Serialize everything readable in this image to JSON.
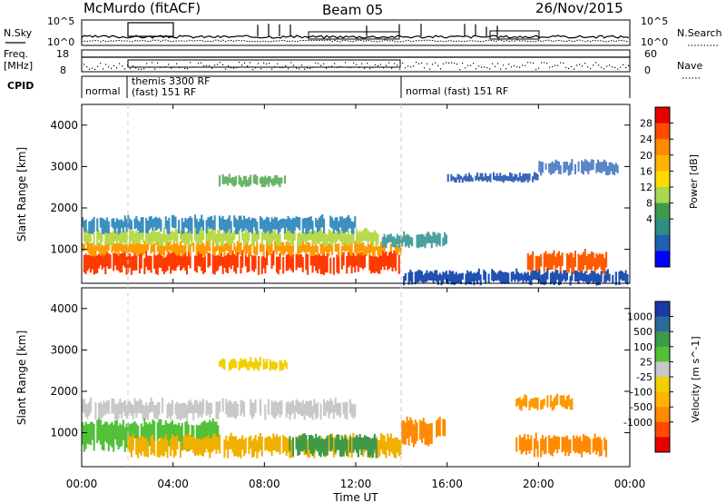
{
  "header": {
    "station": "McMurdo (fitACF)",
    "beam": "Beam 05",
    "date": "26/Nov/2015"
  },
  "top_panels": {
    "nsky_label": "N.Sky",
    "nsearch_label": "N.Search",
    "freq_label": "Freq.",
    "freq_unit": "[MHz]",
    "nave_label": "Nave",
    "cpid_label": "CPID",
    "nsky_ticks": [
      "10^5",
      "10^0"
    ],
    "nsearch_ticks": [
      "10^5",
      "10^0"
    ],
    "freq_ticks": [
      "18",
      "8"
    ],
    "nave_ticks": [
      "60",
      "0"
    ],
    "cpid_segments": [
      {
        "label": "normal",
        "start_hour": 0,
        "end_hour": 1.9
      },
      {
        "label": "themis 3300 RF",
        "start_hour": 1.9,
        "end_hour": 14
      },
      {
        "label": "(fast) 151 RF",
        "start_hour": 1.9,
        "end_hour": 14
      },
      {
        "label": "normal (fast) 151 RF",
        "start_hour": 14,
        "end_hour": 24
      }
    ]
  },
  "chart_data": [
    {
      "type": "heatmap",
      "name": "power",
      "ylabel": "Slant Range [km]",
      "xlabel": "Time UT",
      "xlim": [
        0,
        24
      ],
      "ylim": [
        180,
        4500
      ],
      "x_tick_labels": [
        "00:00",
        "04:00",
        "08:00",
        "12:00",
        "16:00",
        "20:00",
        "00:00"
      ],
      "y_tick_values": [
        1000,
        2000,
        3000,
        4000
      ],
      "y_tick_labels": [
        "1000",
        "2000",
        "3000",
        "4000"
      ],
      "colorbar": {
        "label": "Power [dB]",
        "tick_labels": [
          "28",
          "24",
          "20",
          "16",
          "12",
          "8",
          "4"
        ],
        "colors": [
          "#e80000",
          "#ff4a00",
          "#ff8a00",
          "#ffb400",
          "#ffdb00",
          "#a8d84e",
          "#3c9a4a",
          "#2c8e84",
          "#1e5fb0",
          "#0000ff"
        ]
      },
      "bands": [
        {
          "start": 0.0,
          "end": 14.0,
          "r_low": 500,
          "r_high": 900,
          "color": "#ff3a00"
        },
        {
          "start": 0.0,
          "end": 14.0,
          "r_low": 900,
          "r_high": 1150,
          "color": "#ff9a00"
        },
        {
          "start": 0.0,
          "end": 13.0,
          "r_low": 1150,
          "r_high": 1450,
          "color": "#b8d94c"
        },
        {
          "start": 0.0,
          "end": 12.0,
          "r_low": 1450,
          "r_high": 1750,
          "color": "#3c8fc0"
        },
        {
          "start": 6.0,
          "end": 9.0,
          "r_low": 2550,
          "r_high": 2750,
          "color": "#6ab46a"
        },
        {
          "start": 13.0,
          "end": 16.0,
          "r_low": 1100,
          "r_high": 1350,
          "color": "#4aa0a0"
        },
        {
          "start": 16.0,
          "end": 20.0,
          "r_low": 2650,
          "r_high": 2800,
          "color": "#3a66b8"
        },
        {
          "start": 19.5,
          "end": 23.0,
          "r_low": 500,
          "r_high": 900,
          "color": "#ff5a00"
        },
        {
          "start": 20.0,
          "end": 23.5,
          "r_low": 2850,
          "r_high": 3100,
          "color": "#5a86c8"
        },
        {
          "start": 14.0,
          "end": 24.0,
          "r_low": 200,
          "r_high": 450,
          "color": "#2050b0"
        }
      ]
    },
    {
      "type": "heatmap",
      "name": "velocity",
      "ylabel": "Slant Range [km]",
      "xlabel": "Time UT",
      "xlim": [
        0,
        24
      ],
      "ylim": [
        180,
        4500
      ],
      "x_tick_labels": [
        "00:00",
        "04:00",
        "08:00",
        "12:00",
        "16:00",
        "20:00",
        "00:00"
      ],
      "y_tick_values": [
        1000,
        2000,
        3000,
        4000
      ],
      "y_tick_labels": [
        "1000",
        "2000",
        "3000",
        "4000"
      ],
      "colorbar": {
        "label": "Velocity [m s^-1]",
        "tick_labels": [
          "1000",
          "500",
          "100",
          "25",
          "-25",
          "-100",
          "-500",
          "-1000"
        ],
        "colors": [
          "#1a3aa8",
          "#2a6a9a",
          "#3c9a4a",
          "#52c038",
          "#c8c8c8",
          "#f0d000",
          "#ffb400",
          "#ff8a00",
          "#ff4a00",
          "#e80000"
        ]
      },
      "bands": [
        {
          "start": 0.0,
          "end": 12.0,
          "r_low": 1400,
          "r_high": 1750,
          "color": "#c8c8c8"
        },
        {
          "start": 0.0,
          "end": 6.0,
          "r_low": 700,
          "r_high": 1250,
          "color": "#52c038"
        },
        {
          "start": 2.0,
          "end": 14.0,
          "r_low": 500,
          "r_high": 900,
          "color": "#f0b000"
        },
        {
          "start": 9.0,
          "end": 13.0,
          "r_low": 500,
          "r_high": 900,
          "color": "#3c9a4a"
        },
        {
          "start": 14.0,
          "end": 16.0,
          "r_low": 800,
          "r_high": 1300,
          "color": "#ff8a00"
        },
        {
          "start": 19.0,
          "end": 23.0,
          "r_low": 500,
          "r_high": 900,
          "color": "#ff8a00"
        },
        {
          "start": 19.0,
          "end": 21.5,
          "r_low": 1600,
          "r_high": 1850,
          "color": "#ff9a00"
        },
        {
          "start": 6.0,
          "end": 9.0,
          "r_low": 2550,
          "r_high": 2750,
          "color": "#f0d000"
        }
      ]
    }
  ],
  "colors": {
    "red": "#e80000",
    "orange": "#ff8a00",
    "yellow": "#f0d000",
    "green": "#3c9a4a",
    "blue": "#0000ff",
    "grey": "#c8c8c8"
  }
}
